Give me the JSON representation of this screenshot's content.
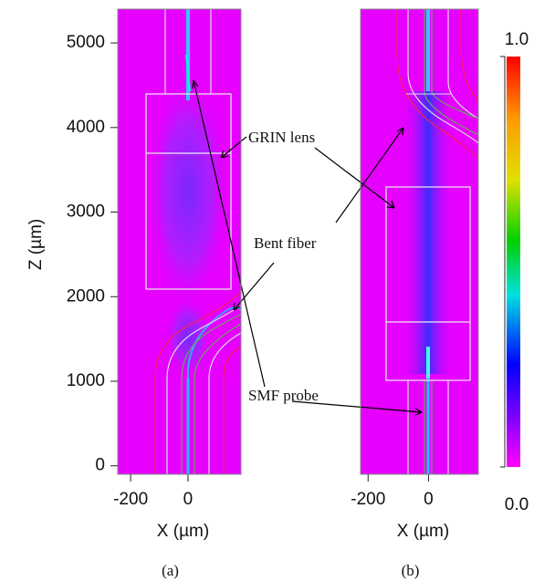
{
  "chart_data": [
    {
      "type": "heatmap",
      "xlabel": "X (µm)",
      "ylabel": "Z (µm)",
      "caption": "(a)",
      "xlim": [
        -245,
        185
      ],
      "ylim": [
        -100,
        5400
      ],
      "xticks": [
        -200,
        0
      ],
      "yticks": [
        0,
        1000,
        2000,
        3000,
        4000,
        5000
      ]
    },
    {
      "type": "heatmap",
      "xlabel": "X (µm)",
      "caption": "(b)",
      "xlim": [
        -225,
        165
      ],
      "ylim": [
        -100,
        5400
      ],
      "xticks": [
        -200,
        0
      ]
    }
  ],
  "colorbar": {
    "clim": [
      0,
      1
    ],
    "ticks": [
      {
        "value": 1,
        "label": "1.0"
      },
      {
        "value": 0,
        "label": "0.0"
      }
    ]
  },
  "annotations": [
    "GRIN lens",
    "Bent fiber",
    "SMF probe"
  ]
}
